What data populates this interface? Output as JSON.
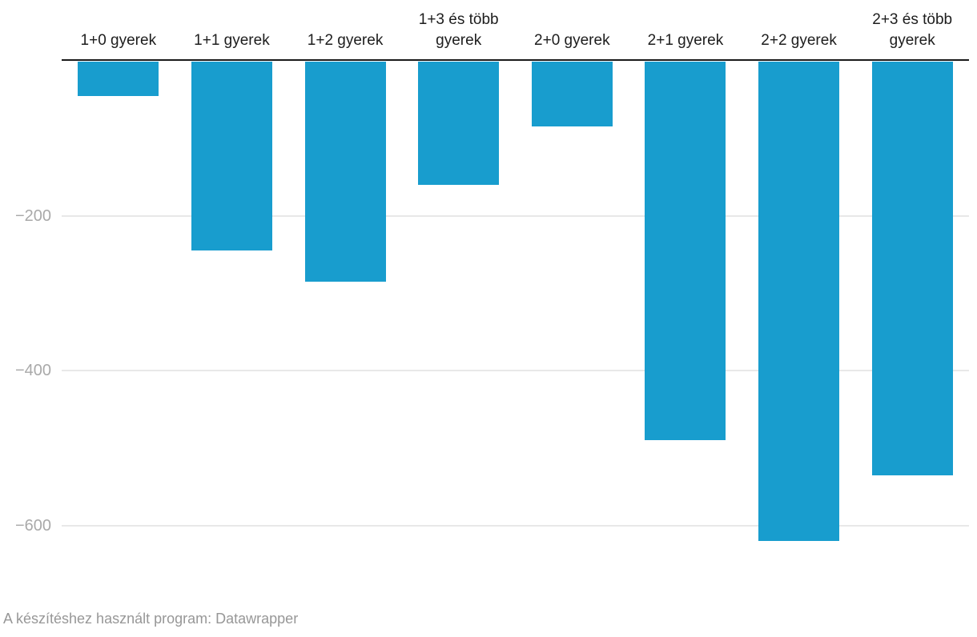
{
  "chart_data": {
    "type": "bar",
    "orientation": "vertical",
    "title": "",
    "xlabel": "",
    "ylabel": "",
    "categories": [
      "1+0 gyerek",
      "1+1 gyerek",
      "1+2 gyerek",
      "1+3 és több gyerek",
      "2+0 gyerek",
      "2+1 gyerek",
      "2+2 gyerek",
      "2+3 és több gyerek"
    ],
    "values": [
      -45,
      -245,
      -285,
      -160,
      -85,
      -490,
      -620,
      -535
    ],
    "y_ticks": [
      {
        "value": -200,
        "label": "−200"
      },
      {
        "value": -400,
        "label": "−400"
      },
      {
        "value": -600,
        "label": "−600"
      }
    ],
    "ylim": [
      -680,
      0
    ],
    "grid": true,
    "legend": "none",
    "category_label_position": "top",
    "bar_color": "#189dce"
  },
  "footer": {
    "attribution": "A készítéshez használt program: Datawrapper"
  },
  "colors": {
    "bar": "#189dce",
    "axis_line": "#1a1a1a",
    "gridline": "#e8e8e8",
    "tick_label": "#a9a9a9",
    "category_label": "#1d1d1d",
    "footer_text": "#979797",
    "background": "#ffffff"
  }
}
